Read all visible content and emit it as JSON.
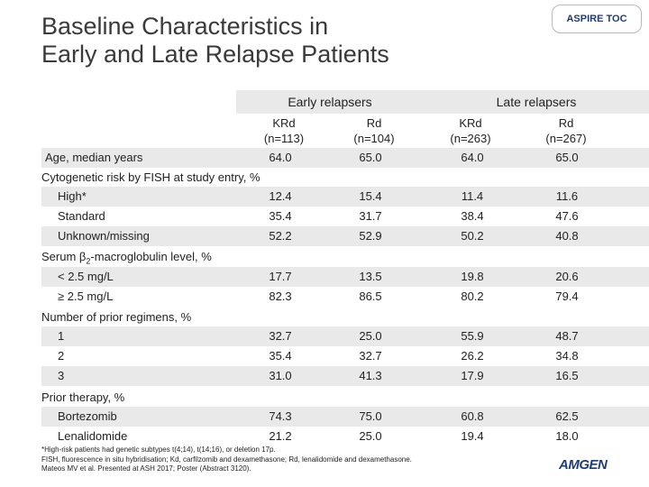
{
  "header": {
    "title_line1": "Baseline Characteristics in",
    "title_line2": "Early and Late Relapse Patients",
    "badge": "ASPIRE TOC"
  },
  "table": {
    "group_headers": [
      "Early relapsers",
      "Late relapsers"
    ],
    "columns": [
      {
        "name": "KRd",
        "n": "(n=113)"
      },
      {
        "name": "Rd",
        "n": "(n=104)"
      },
      {
        "name": "KRd",
        "n": "(n=263)"
      },
      {
        "name": "Rd",
        "n": "(n=267)"
      }
    ],
    "age_row": {
      "label": "Age, median years",
      "values": [
        "64.0",
        "65.0",
        "64.0",
        "65.0"
      ]
    },
    "sections": [
      {
        "title": "Cytogenetic risk by FISH at study entry, %",
        "rows": [
          {
            "label": "High*",
            "values": [
              "12.4",
              "15.4",
              "11.4",
              "11.6"
            ]
          },
          {
            "label": "Standard",
            "values": [
              "35.4",
              "31.7",
              "38.4",
              "47.6"
            ]
          },
          {
            "label": "Unknown/missing",
            "values": [
              "52.2",
              "52.9",
              "50.2",
              "40.8"
            ]
          }
        ]
      },
      {
        "title_prefix": "Serum β",
        "title_sub": "2",
        "title_suffix": "-macroglobulin level, %",
        "rows": [
          {
            "label": "< 2.5 mg/L",
            "values": [
              "17.7",
              "13.5",
              "19.8",
              "20.6"
            ]
          },
          {
            "label": "≥ 2.5 mg/L",
            "values": [
              "82.3",
              "86.5",
              "80.2",
              "79.4"
            ]
          }
        ]
      },
      {
        "title": "Number of prior regimens, %",
        "rows": [
          {
            "label": "1",
            "values": [
              "32.7",
              "25.0",
              "55.9",
              "48.7"
            ]
          },
          {
            "label": "2",
            "values": [
              "35.4",
              "32.7",
              "26.2",
              "34.8"
            ]
          },
          {
            "label": "3",
            "values": [
              "31.0",
              "41.3",
              "17.9",
              "16.5"
            ]
          }
        ]
      },
      {
        "title": "Prior therapy, %",
        "rows": [
          {
            "label": "Bortezomib",
            "values": [
              "74.3",
              "75.0",
              "60.8",
              "62.5"
            ]
          },
          {
            "label": "Lenalidomide",
            "values": [
              "21.2",
              "25.0",
              "19.4",
              "18.0"
            ]
          }
        ]
      }
    ]
  },
  "footnotes": [
    "*High-risk patients had genetic subtypes t(4;14), t(14;16), or deletion 17p.",
    "FISH, fluorescence in situ hybridisation; Kd, carfilzomib and dexamethasone; Rd, lenalidomide and dexamethasone.",
    "Mateos MV et al. Presented at ASH 2017; Poster (Abstract 3120)."
  ],
  "logo": "AMGEN"
}
